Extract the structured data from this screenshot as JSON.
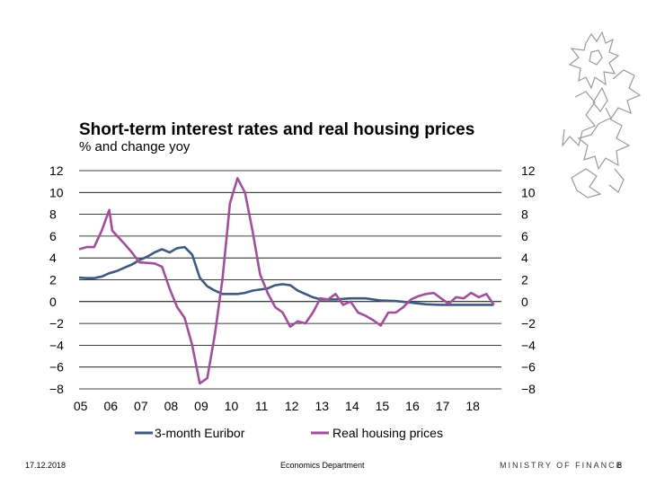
{
  "chart_data": {
    "type": "line",
    "title": "Short-term interest rates and real housing prices",
    "subtitle": "% and change yoy",
    "xlabel": "",
    "ylabel": "",
    "ylim": [
      -8,
      12
    ],
    "y_ticks": [
      12,
      10,
      8,
      6,
      4,
      2,
      0,
      -2,
      -4,
      -6,
      -8
    ],
    "y_tick_labels": [
      "12",
      "10",
      "8",
      "6",
      "4",
      "2",
      "0",
      "−2",
      "−4",
      "−6",
      "−8"
    ],
    "x_tick_labels": [
      "05",
      "06",
      "07",
      "08",
      "09",
      "10",
      "11",
      "12",
      "13",
      "14",
      "15",
      "16",
      "17",
      "18"
    ],
    "xlim": [
      2005,
      2019
    ],
    "series": [
      {
        "name": "3-month Euribor",
        "color": "#3d5a80",
        "x": [
          2005.0,
          2005.25,
          2005.5,
          2005.75,
          2006.0,
          2006.25,
          2006.5,
          2006.75,
          2007.0,
          2007.25,
          2007.5,
          2007.75,
          2008.0,
          2008.25,
          2008.5,
          2008.75,
          2009.0,
          2009.25,
          2009.5,
          2009.75,
          2010.0,
          2010.25,
          2010.5,
          2010.75,
          2011.0,
          2011.25,
          2011.5,
          2011.75,
          2012.0,
          2012.25,
          2012.5,
          2012.75,
          2013.0,
          2013.5,
          2014.0,
          2014.5,
          2015.0,
          2015.5,
          2016.0,
          2016.5,
          2017.0,
          2017.5,
          2018.0,
          2018.5,
          2018.75
        ],
        "values": [
          2.2,
          2.15,
          2.15,
          2.3,
          2.6,
          2.8,
          3.1,
          3.4,
          3.8,
          4.1,
          4.5,
          4.8,
          4.5,
          4.9,
          5.0,
          4.3,
          2.2,
          1.4,
          1.0,
          0.7,
          0.7,
          0.7,
          0.8,
          1.0,
          1.1,
          1.2,
          1.5,
          1.6,
          1.5,
          1.0,
          0.7,
          0.4,
          0.2,
          0.2,
          0.3,
          0.3,
          0.1,
          0.05,
          -0.1,
          -0.25,
          -0.3,
          -0.3,
          -0.3,
          -0.3,
          -0.3
        ]
      },
      {
        "name": "Real housing prices",
        "color": "#a0509a",
        "x": [
          2005.0,
          2005.25,
          2005.5,
          2005.75,
          2006.0,
          2006.1,
          2006.5,
          2006.75,
          2007.0,
          2007.5,
          2007.75,
          2008.0,
          2008.25,
          2008.5,
          2008.75,
          2009.0,
          2009.25,
          2009.5,
          2009.75,
          2010.0,
          2010.25,
          2010.5,
          2010.75,
          2011.0,
          2011.25,
          2011.5,
          2011.75,
          2012.0,
          2012.25,
          2012.5,
          2012.75,
          2013.0,
          2013.25,
          2013.5,
          2013.75,
          2014.0,
          2014.25,
          2014.5,
          2014.75,
          2015.0,
          2015.25,
          2015.5,
          2015.75,
          2016.0,
          2016.25,
          2016.5,
          2016.75,
          2017.0,
          2017.25,
          2017.5,
          2017.75,
          2018.0,
          2018.25,
          2018.5,
          2018.75
        ],
        "values": [
          4.8,
          5.0,
          5.0,
          6.5,
          8.4,
          6.5,
          5.3,
          4.5,
          3.6,
          3.5,
          3.2,
          1.2,
          -0.5,
          -1.5,
          -4.0,
          -7.5,
          -7.0,
          -3.0,
          2.0,
          9.0,
          11.3,
          10.0,
          6.5,
          2.5,
          0.8,
          -0.5,
          -1.0,
          -2.3,
          -1.8,
          -2.0,
          -1.0,
          0.3,
          0.2,
          0.7,
          -0.3,
          0.0,
          -1.0,
          -1.3,
          -1.7,
          -2.2,
          -1.0,
          -1.0,
          -0.5,
          0.2,
          0.5,
          0.7,
          0.8,
          0.3,
          -0.2,
          0.4,
          0.3,
          0.8,
          0.4,
          0.7,
          -0.3
        ]
      }
    ]
  },
  "footer": {
    "date": "17.12.2018",
    "department": "Economics Department",
    "brand": "MINISTRY OF FINANCE",
    "page": "8"
  }
}
